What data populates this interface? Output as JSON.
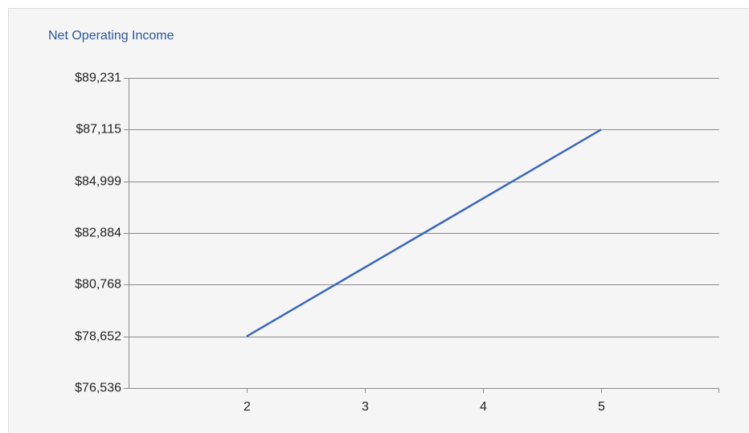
{
  "chart_data": {
    "type": "line",
    "title": "Net Operating Income",
    "x": [
      2,
      3,
      4,
      5
    ],
    "series": [
      {
        "name": "Net Operating Income",
        "color": "#3a68bd",
        "values": [
          78652,
          81473,
          84294,
          87115
        ]
      }
    ],
    "xlim": [
      1,
      6
    ],
    "xticks": [
      2,
      3,
      4,
      5
    ],
    "ylim": [
      76536,
      89231
    ],
    "yticks": [
      {
        "value": 76536,
        "label": "$76,536"
      },
      {
        "value": 78652,
        "label": "$78,652"
      },
      {
        "value": 80768,
        "label": "$80,768"
      },
      {
        "value": 82884,
        "label": "$82,884"
      },
      {
        "value": 84999,
        "label": "$84,999"
      },
      {
        "value": 87115,
        "label": "$87,115"
      },
      {
        "value": 89231,
        "label": "$89,231"
      }
    ],
    "grid": true
  }
}
